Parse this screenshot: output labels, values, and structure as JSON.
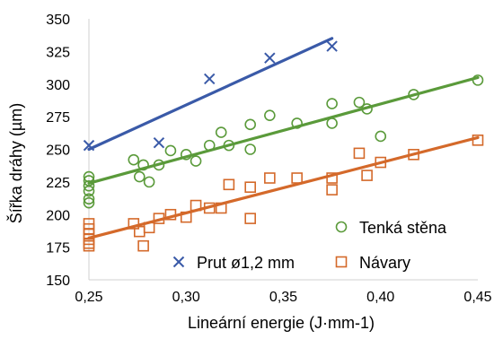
{
  "chart_data": {
    "type": "scatter",
    "xlabel": "Lineární energie (J·mm-1)",
    "ylabel": "Šířka dráhy (µm)",
    "xlim": [
      0.25,
      0.45
    ],
    "ylim": [
      150,
      350
    ],
    "x_ticks": [
      0.25,
      0.3,
      0.35,
      0.4,
      0.45
    ],
    "x_tick_labels": [
      "0,25",
      "0,30",
      "0,35",
      "0,40",
      "0,45"
    ],
    "y_ticks": [
      150,
      175,
      200,
      225,
      250,
      275,
      300,
      325,
      350
    ],
    "y_tick_labels": [
      "150",
      "175",
      "200",
      "225",
      "250",
      "275",
      "300",
      "325",
      "350"
    ],
    "grid": false,
    "series": [
      {
        "name": "Tenká stěna",
        "marker": "circle",
        "color": "#5a9a3a",
        "points": [
          [
            0.25,
            229
          ],
          [
            0.25,
            226
          ],
          [
            0.25,
            222
          ],
          [
            0.25,
            218
          ],
          [
            0.25,
            212
          ],
          [
            0.25,
            209
          ],
          [
            0.273,
            242
          ],
          [
            0.276,
            229
          ],
          [
            0.278,
            238
          ],
          [
            0.281,
            225
          ],
          [
            0.286,
            238
          ],
          [
            0.292,
            249
          ],
          [
            0.3,
            246
          ],
          [
            0.305,
            241
          ],
          [
            0.312,
            253
          ],
          [
            0.318,
            263
          ],
          [
            0.322,
            253
          ],
          [
            0.333,
            269
          ],
          [
            0.333,
            250
          ],
          [
            0.343,
            276
          ],
          [
            0.357,
            270
          ],
          [
            0.375,
            285
          ],
          [
            0.375,
            270
          ],
          [
            0.389,
            286
          ],
          [
            0.393,
            281
          ],
          [
            0.4,
            260
          ],
          [
            0.417,
            292
          ],
          [
            0.45,
            303
          ]
        ],
        "trend": [
          [
            0.25,
            224
          ],
          [
            0.45,
            305
          ]
        ]
      },
      {
        "name": "Prut ø1,2 mm",
        "marker": "x",
        "color": "#3a5aa8",
        "points": [
          [
            0.25,
            253
          ],
          [
            0.286,
            255
          ],
          [
            0.312,
            304
          ],
          [
            0.343,
            320
          ],
          [
            0.375,
            329
          ]
        ],
        "trend": [
          [
            0.25,
            250
          ],
          [
            0.375,
            335
          ]
        ]
      },
      {
        "name": "Návary",
        "marker": "square",
        "color": "#d4692a",
        "points": [
          [
            0.25,
            193
          ],
          [
            0.25,
            189
          ],
          [
            0.25,
            185
          ],
          [
            0.25,
            181
          ],
          [
            0.25,
            178
          ],
          [
            0.25,
            176
          ],
          [
            0.273,
            193
          ],
          [
            0.276,
            187
          ],
          [
            0.278,
            176
          ],
          [
            0.281,
            190
          ],
          [
            0.286,
            197
          ],
          [
            0.292,
            200
          ],
          [
            0.3,
            198
          ],
          [
            0.305,
            207
          ],
          [
            0.312,
            205
          ],
          [
            0.318,
            205
          ],
          [
            0.322,
            223
          ],
          [
            0.333,
            221
          ],
          [
            0.333,
            197
          ],
          [
            0.343,
            228
          ],
          [
            0.357,
            228
          ],
          [
            0.375,
            228
          ],
          [
            0.375,
            219
          ],
          [
            0.389,
            247
          ],
          [
            0.393,
            230
          ],
          [
            0.4,
            240
          ],
          [
            0.417,
            246
          ],
          [
            0.45,
            257
          ]
        ],
        "trend": [
          [
            0.25,
            182
          ],
          [
            0.45,
            259
          ]
        ]
      }
    ]
  }
}
